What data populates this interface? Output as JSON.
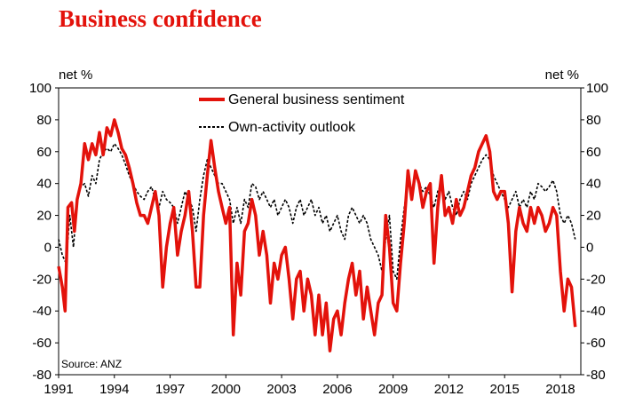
{
  "chart_data": {
    "type": "line",
    "title": "Business confidence",
    "ylabel_left": "net %",
    "ylabel_right": "net %",
    "source": "Source: ANZ",
    "ylim": [
      -80,
      100
    ],
    "yticks": [
      100,
      80,
      60,
      40,
      20,
      0,
      -20,
      -40,
      -60,
      -80
    ],
    "xlim": [
      1991,
      2019.1
    ],
    "xticks": [
      1991,
      1994,
      1997,
      2000,
      2003,
      2006,
      2009,
      2012,
      2015,
      2018
    ],
    "legend_position": "top-center",
    "series": [
      {
        "name": "General business sentiment",
        "color": "#e3120b",
        "style": "solid",
        "points": [
          [
            1991.0,
            -12
          ],
          [
            1991.2,
            -25
          ],
          [
            1991.35,
            -40
          ],
          [
            1991.5,
            25
          ],
          [
            1991.7,
            28
          ],
          [
            1991.85,
            10
          ],
          [
            1992.0,
            30
          ],
          [
            1992.2,
            40
          ],
          [
            1992.4,
            65
          ],
          [
            1992.6,
            55
          ],
          [
            1992.8,
            65
          ],
          [
            1993.0,
            58
          ],
          [
            1993.2,
            72
          ],
          [
            1993.4,
            58
          ],
          [
            1993.6,
            75
          ],
          [
            1993.8,
            70
          ],
          [
            1994.0,
            80
          ],
          [
            1994.2,
            72
          ],
          [
            1994.4,
            62
          ],
          [
            1994.6,
            58
          ],
          [
            1994.8,
            50
          ],
          [
            1995.0,
            40
          ],
          [
            1995.2,
            28
          ],
          [
            1995.4,
            20
          ],
          [
            1995.6,
            20
          ],
          [
            1995.8,
            15
          ],
          [
            1996.0,
            25
          ],
          [
            1996.2,
            35
          ],
          [
            1996.4,
            20
          ],
          [
            1996.6,
            -25
          ],
          [
            1996.8,
            0
          ],
          [
            1997.0,
            15
          ],
          [
            1997.2,
            25
          ],
          [
            1997.4,
            -5
          ],
          [
            1997.6,
            10
          ],
          [
            1997.8,
            20
          ],
          [
            1998.0,
            35
          ],
          [
            1998.2,
            10
          ],
          [
            1998.4,
            -25
          ],
          [
            1998.6,
            -25
          ],
          [
            1998.8,
            20
          ],
          [
            1999.0,
            45
          ],
          [
            1999.2,
            67
          ],
          [
            1999.4,
            50
          ],
          [
            1999.6,
            35
          ],
          [
            1999.8,
            25
          ],
          [
            2000.0,
            15
          ],
          [
            2000.2,
            25
          ],
          [
            2000.4,
            -55
          ],
          [
            2000.6,
            -10
          ],
          [
            2000.8,
            -30
          ],
          [
            2001.0,
            10
          ],
          [
            2001.2,
            15
          ],
          [
            2001.4,
            30
          ],
          [
            2001.6,
            20
          ],
          [
            2001.8,
            -5
          ],
          [
            2002.0,
            10
          ],
          [
            2002.2,
            -5
          ],
          [
            2002.4,
            -35
          ],
          [
            2002.6,
            -10
          ],
          [
            2002.8,
            -20
          ],
          [
            2003.0,
            -5
          ],
          [
            2003.2,
            0
          ],
          [
            2003.4,
            -20
          ],
          [
            2003.6,
            -45
          ],
          [
            2003.8,
            -20
          ],
          [
            2004.0,
            -15
          ],
          [
            2004.2,
            -40
          ],
          [
            2004.4,
            -20
          ],
          [
            2004.6,
            -30
          ],
          [
            2004.8,
            -55
          ],
          [
            2005.0,
            -30
          ],
          [
            2005.2,
            -55
          ],
          [
            2005.4,
            -35
          ],
          [
            2005.6,
            -65
          ],
          [
            2005.8,
            -45
          ],
          [
            2006.0,
            -40
          ],
          [
            2006.2,
            -55
          ],
          [
            2006.4,
            -35
          ],
          [
            2006.6,
            -20
          ],
          [
            2006.8,
            -10
          ],
          [
            2007.0,
            -30
          ],
          [
            2007.2,
            -15
          ],
          [
            2007.4,
            -45
          ],
          [
            2007.6,
            -25
          ],
          [
            2007.8,
            -40
          ],
          [
            2008.0,
            -55
          ],
          [
            2008.2,
            -35
          ],
          [
            2008.4,
            -30
          ],
          [
            2008.6,
            20
          ],
          [
            2008.8,
            0
          ],
          [
            2009.0,
            -35
          ],
          [
            2009.2,
            -40
          ],
          [
            2009.4,
            -10
          ],
          [
            2009.6,
            15
          ],
          [
            2009.8,
            48
          ],
          [
            2010.0,
            30
          ],
          [
            2010.2,
            48
          ],
          [
            2010.4,
            40
          ],
          [
            2010.6,
            25
          ],
          [
            2010.8,
            35
          ],
          [
            2011.0,
            40
          ],
          [
            2011.2,
            -10
          ],
          [
            2011.4,
            25
          ],
          [
            2011.6,
            45
          ],
          [
            2011.8,
            20
          ],
          [
            2012.0,
            25
          ],
          [
            2012.2,
            15
          ],
          [
            2012.4,
            30
          ],
          [
            2012.6,
            20
          ],
          [
            2012.8,
            25
          ],
          [
            2013.0,
            35
          ],
          [
            2013.2,
            45
          ],
          [
            2013.4,
            50
          ],
          [
            2013.6,
            60
          ],
          [
            2013.8,
            65
          ],
          [
            2014.0,
            70
          ],
          [
            2014.2,
            60
          ],
          [
            2014.4,
            35
          ],
          [
            2014.6,
            30
          ],
          [
            2014.8,
            35
          ],
          [
            2015.0,
            35
          ],
          [
            2015.2,
            15
          ],
          [
            2015.4,
            -28
          ],
          [
            2015.6,
            10
          ],
          [
            2015.8,
            25
          ],
          [
            2016.0,
            15
          ],
          [
            2016.2,
            10
          ],
          [
            2016.4,
            25
          ],
          [
            2016.6,
            15
          ],
          [
            2016.8,
            25
          ],
          [
            2017.0,
            20
          ],
          [
            2017.2,
            10
          ],
          [
            2017.4,
            15
          ],
          [
            2017.6,
            25
          ],
          [
            2017.8,
            20
          ],
          [
            2018.0,
            -15
          ],
          [
            2018.2,
            -40
          ],
          [
            2018.4,
            -20
          ],
          [
            2018.6,
            -25
          ],
          [
            2018.8,
            -50
          ]
        ]
      },
      {
        "name": "Own-activity outlook",
        "color": "#000000",
        "style": "dashed",
        "points": [
          [
            1991.0,
            5
          ],
          [
            1991.2,
            -5
          ],
          [
            1991.4,
            -10
          ],
          [
            1991.6,
            20
          ],
          [
            1991.8,
            0
          ],
          [
            1992.0,
            30
          ],
          [
            1992.2,
            38
          ],
          [
            1992.4,
            40
          ],
          [
            1992.6,
            32
          ],
          [
            1992.8,
            45
          ],
          [
            1993.0,
            40
          ],
          [
            1993.2,
            55
          ],
          [
            1993.4,
            60
          ],
          [
            1993.6,
            62
          ],
          [
            1993.8,
            60
          ],
          [
            1994.0,
            65
          ],
          [
            1994.2,
            62
          ],
          [
            1994.4,
            58
          ],
          [
            1994.6,
            52
          ],
          [
            1994.8,
            45
          ],
          [
            1995.0,
            40
          ],
          [
            1995.2,
            35
          ],
          [
            1995.4,
            32
          ],
          [
            1995.6,
            30
          ],
          [
            1995.8,
            35
          ],
          [
            1996.0,
            38
          ],
          [
            1996.2,
            30
          ],
          [
            1996.4,
            25
          ],
          [
            1996.6,
            35
          ],
          [
            1996.8,
            30
          ],
          [
            1997.0,
            28
          ],
          [
            1997.2,
            25
          ],
          [
            1997.4,
            15
          ],
          [
            1997.6,
            25
          ],
          [
            1997.8,
            35
          ],
          [
            1998.0,
            30
          ],
          [
            1998.2,
            25
          ],
          [
            1998.4,
            10
          ],
          [
            1998.6,
            30
          ],
          [
            1998.8,
            45
          ],
          [
            1999.0,
            55
          ],
          [
            1999.2,
            50
          ],
          [
            1999.4,
            45
          ],
          [
            1999.6,
            40
          ],
          [
            1999.8,
            40
          ],
          [
            2000.0,
            35
          ],
          [
            2000.2,
            30
          ],
          [
            2000.4,
            15
          ],
          [
            2000.6,
            25
          ],
          [
            2000.8,
            15
          ],
          [
            2001.0,
            30
          ],
          [
            2001.2,
            25
          ],
          [
            2001.4,
            40
          ],
          [
            2001.6,
            38
          ],
          [
            2001.8,
            30
          ],
          [
            2002.0,
            35
          ],
          [
            2002.2,
            30
          ],
          [
            2002.4,
            25
          ],
          [
            2002.6,
            30
          ],
          [
            2002.8,
            20
          ],
          [
            2003.0,
            25
          ],
          [
            2003.2,
            30
          ],
          [
            2003.4,
            25
          ],
          [
            2003.6,
            15
          ],
          [
            2003.8,
            25
          ],
          [
            2004.0,
            30
          ],
          [
            2004.2,
            20
          ],
          [
            2004.4,
            25
          ],
          [
            2004.6,
            30
          ],
          [
            2004.8,
            20
          ],
          [
            2005.0,
            25
          ],
          [
            2005.2,
            15
          ],
          [
            2005.4,
            20
          ],
          [
            2005.6,
            10
          ],
          [
            2005.8,
            15
          ],
          [
            2006.0,
            20
          ],
          [
            2006.2,
            10
          ],
          [
            2006.4,
            5
          ],
          [
            2006.6,
            20
          ],
          [
            2006.8,
            25
          ],
          [
            2007.0,
            20
          ],
          [
            2007.2,
            15
          ],
          [
            2007.4,
            20
          ],
          [
            2007.6,
            15
          ],
          [
            2007.8,
            5
          ],
          [
            2008.0,
            0
          ],
          [
            2008.2,
            -5
          ],
          [
            2008.4,
            -15
          ],
          [
            2008.6,
            5
          ],
          [
            2008.8,
            20
          ],
          [
            2009.0,
            -15
          ],
          [
            2009.2,
            -20
          ],
          [
            2009.4,
            5
          ],
          [
            2009.6,
            25
          ],
          [
            2009.8,
            40
          ],
          [
            2010.0,
            35
          ],
          [
            2010.2,
            45
          ],
          [
            2010.4,
            40
          ],
          [
            2010.6,
            35
          ],
          [
            2010.8,
            38
          ],
          [
            2011.0,
            32
          ],
          [
            2011.2,
            25
          ],
          [
            2011.4,
            35
          ],
          [
            2011.6,
            40
          ],
          [
            2011.8,
            30
          ],
          [
            2012.0,
            35
          ],
          [
            2012.2,
            25
          ],
          [
            2012.4,
            20
          ],
          [
            2012.6,
            30
          ],
          [
            2012.8,
            35
          ],
          [
            2013.0,
            30
          ],
          [
            2013.2,
            40
          ],
          [
            2013.4,
            45
          ],
          [
            2013.6,
            50
          ],
          [
            2013.8,
            55
          ],
          [
            2014.0,
            58
          ],
          [
            2014.2,
            55
          ],
          [
            2014.4,
            45
          ],
          [
            2014.6,
            40
          ],
          [
            2014.8,
            35
          ],
          [
            2015.0,
            30
          ],
          [
            2015.2,
            25
          ],
          [
            2015.4,
            30
          ],
          [
            2015.6,
            35
          ],
          [
            2015.8,
            25
          ],
          [
            2016.0,
            30
          ],
          [
            2016.2,
            25
          ],
          [
            2016.4,
            35
          ],
          [
            2016.6,
            30
          ],
          [
            2016.8,
            40
          ],
          [
            2017.0,
            38
          ],
          [
            2017.2,
            35
          ],
          [
            2017.4,
            38
          ],
          [
            2017.6,
            42
          ],
          [
            2017.8,
            35
          ],
          [
            2018.0,
            20
          ],
          [
            2018.2,
            15
          ],
          [
            2018.4,
            20
          ],
          [
            2018.6,
            15
          ],
          [
            2018.8,
            5
          ]
        ]
      }
    ]
  }
}
